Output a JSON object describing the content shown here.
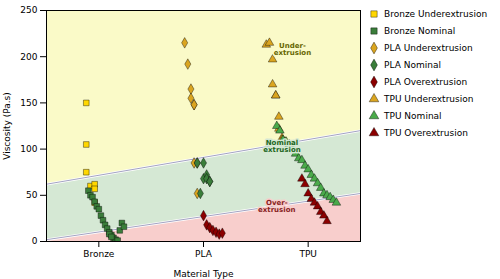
{
  "chart_data": {
    "type": "scatter",
    "xlabel": "Material Type",
    "ylabel": "Viscosity (Pa.s)",
    "xlim": [
      0.5,
      3.5
    ],
    "ylim": [
      0,
      250
    ],
    "xticks": [
      {
        "value": 1,
        "label": "Bronze"
      },
      {
        "value": 2,
        "label": "PLA"
      },
      {
        "value": 3,
        "label": "TPU"
      }
    ],
    "yticks": [
      0,
      50,
      100,
      150,
      200,
      250
    ],
    "grid": false,
    "legend": "right",
    "boundaries": {
      "upper": {
        "x": [
          0.5,
          3.5
        ],
        "y": [
          62,
          120
        ]
      },
      "lower": {
        "x": [
          0.5,
          3.5
        ],
        "y": [
          2,
          52
        ]
      }
    },
    "regions": {
      "above_upper": "#fafac8",
      "between": "#d5e8d4",
      "below_lower": "#f8cecc"
    },
    "annotations": [
      {
        "text": "Under-\nextrusion",
        "x": 2.85,
        "y": 215,
        "color": "#666600",
        "fill": "#fafac8"
      },
      {
        "text": "Nominal\nextrusion",
        "x": 2.75,
        "y": 110,
        "color": "#226622",
        "fill": "#d5e8d4"
      },
      {
        "text": "Over-\nextrusion",
        "x": 2.7,
        "y": 45,
        "color": "#882222",
        "fill": "#f8cecc"
      }
    ],
    "series": [
      {
        "name": "Bronze Underextrusion",
        "color": "#FFD700",
        "marker": "square",
        "x": [
          0.88,
          0.88,
          0.88,
          0.92,
          0.96,
          0.96,
          0.96
        ],
        "values": [
          75,
          105,
          150,
          60,
          62,
          57,
          42
        ]
      },
      {
        "name": "Bronze Nominal",
        "color": "#3a7d3a",
        "marker": "square",
        "x": [
          0.9,
          0.92,
          0.94,
          0.96,
          0.98,
          1.0,
          1.02,
          1.04,
          1.06,
          1.08,
          1.1,
          1.12,
          1.14,
          1.16,
          1.18,
          1.2,
          1.22,
          1.24,
          1.1,
          1.12
        ],
        "values": [
          55,
          50,
          48,
          43,
          38,
          35,
          28,
          23,
          18,
          14,
          10,
          7,
          4,
          2,
          1,
          12,
          20,
          16,
          8,
          5
        ]
      },
      {
        "name": "PLA Underextrusion",
        "color": "#DAA520",
        "marker": "diamond",
        "x": [
          1.82,
          1.85,
          1.88,
          1.88,
          1.91,
          1.91,
          1.91,
          1.94,
          1.94
        ],
        "values": [
          215,
          192,
          165,
          155,
          148,
          148,
          85,
          85,
          52
        ]
      },
      {
        "name": "PLA Nominal",
        "color": "#3a7d3a",
        "marker": "diamond",
        "x": [
          1.94,
          1.97,
          2.0,
          2.0,
          2.03,
          2.03,
          2.06,
          2.06
        ],
        "values": [
          85,
          52,
          85,
          68,
          72,
          68,
          65,
          65
        ]
      },
      {
        "name": "PLA Overextrusion",
        "color": "#8B0000",
        "marker": "diamond",
        "x": [
          2.0,
          2.03,
          2.06,
          2.09,
          2.12,
          2.15,
          2.18
        ],
        "values": [
          28,
          18,
          15,
          12,
          10,
          8,
          9
        ]
      },
      {
        "name": "TPU Underextrusion",
        "color": "#DAA520",
        "marker": "triangle",
        "x": [
          2.6,
          2.63,
          2.66,
          2.66,
          2.69,
          2.69,
          2.72,
          2.72,
          2.75,
          2.75,
          2.78
        ],
        "values": [
          213,
          215,
          197,
          170,
          158,
          158,
          135,
          122,
          112,
          110,
          108
        ]
      },
      {
        "name": "TPU Nominal",
        "color": "#4aaa4a",
        "marker": "triangle",
        "x": [
          2.7,
          2.73,
          2.76,
          2.79,
          2.82,
          2.85,
          2.88,
          2.91,
          2.94,
          2.97,
          3.0,
          3.03,
          3.06,
          3.09,
          3.12,
          3.15,
          3.18,
          3.21,
          3.24,
          3.27
        ],
        "values": [
          125,
          120,
          110,
          108,
          105,
          100,
          95,
          90,
          88,
          82,
          78,
          72,
          68,
          63,
          58,
          52,
          50,
          48,
          45,
          42
        ]
      },
      {
        "name": "TPU Overextrusion",
        "color": "#8B0000",
        "marker": "triangle",
        "x": [
          2.94,
          2.97,
          3.0,
          3.03,
          3.06,
          3.09,
          3.12,
          3.15,
          3.18
        ],
        "values": [
          68,
          62,
          52,
          46,
          42,
          38,
          32,
          28,
          22
        ]
      }
    ]
  }
}
